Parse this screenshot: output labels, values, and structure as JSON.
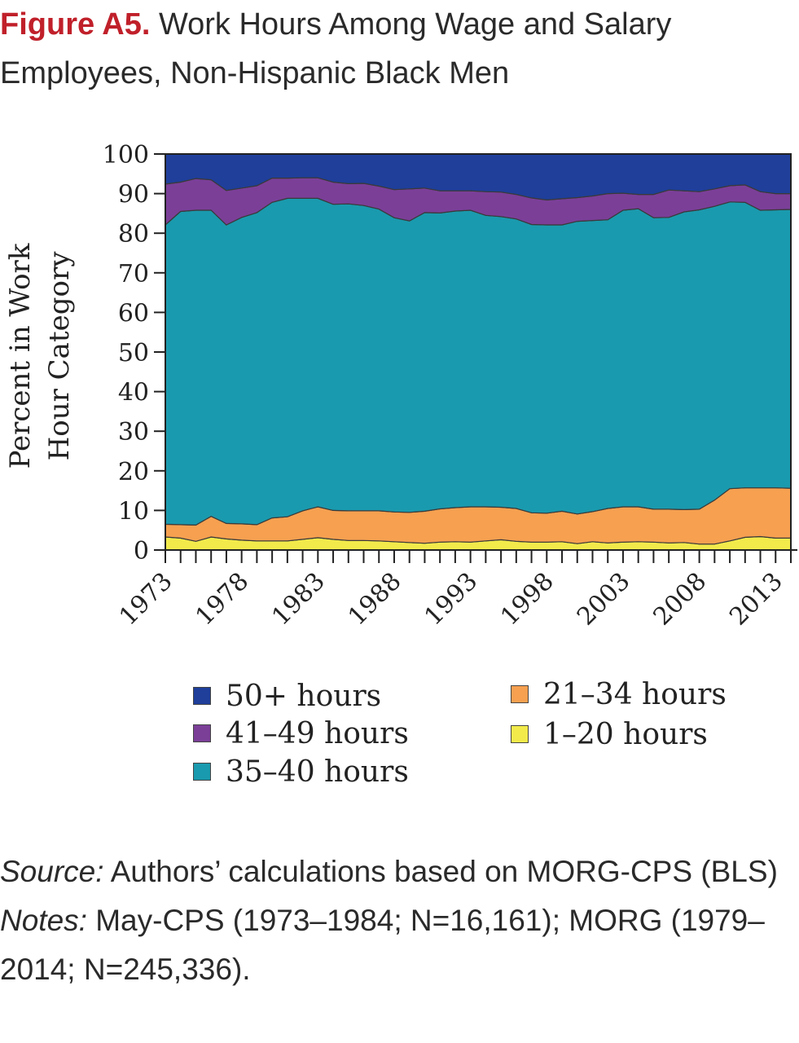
{
  "figure_label": "Figure A5.",
  "title": "Work Hours Among Wage and Salary Employees, Non-Hispanic Black Men",
  "source_label": "Source:",
  "source_text": " Authors’ calculations based on MORG-CPS (BLS)",
  "notes_label": "Notes:",
  "notes_text": " May-CPS (1973–1984; N=16,161); MORG (1979–2014; N=245,336).",
  "chart_data": {
    "type": "area",
    "stacked": true,
    "ylabel": "Percent in Work Hour Category",
    "xlabel": "",
    "ylim": [
      0,
      100
    ],
    "yticks": [
      0,
      10,
      20,
      30,
      40,
      50,
      60,
      70,
      80,
      90,
      100
    ],
    "xtick_labels": [
      "1973",
      "1978",
      "1983",
      "1988",
      "1993",
      "1998",
      "2003",
      "2008",
      "2013"
    ],
    "grid": false,
    "legend_position": "bottom",
    "x": [
      1973,
      1974,
      1975,
      1976,
      1977,
      1978,
      1979,
      1980,
      1981,
      1982,
      1983,
      1984,
      1985,
      1986,
      1987,
      1988,
      1989,
      1990,
      1991,
      1992,
      1993,
      1994,
      1995,
      1996,
      1997,
      1998,
      1999,
      2000,
      2001,
      2002,
      2003,
      2004,
      2005,
      2006,
      2007,
      2008,
      2009,
      2010,
      2011,
      2012,
      2013,
      2014
    ],
    "series": [
      {
        "name": "1–20 hours",
        "color": "#f2ea4b",
        "values": [
          3.3,
          3.0,
          2.2,
          3.3,
          2.8,
          2.5,
          2.3,
          2.3,
          2.3,
          2.7,
          3.1,
          2.7,
          2.4,
          2.4,
          2.3,
          2.1,
          1.9,
          1.7,
          2.0,
          2.1,
          2.0,
          2.3,
          2.6,
          2.2,
          2.0,
          2.0,
          2.1,
          1.6,
          2.1,
          1.8,
          2.0,
          2.1,
          2.0,
          1.8,
          1.9,
          1.5,
          1.5,
          2.3,
          3.2,
          3.4,
          3.0,
          3.0
        ]
      },
      {
        "name": "21–34 hours",
        "color": "#f6a050",
        "values": [
          3.2,
          3.4,
          4.1,
          5.2,
          3.9,
          4.1,
          4.1,
          5.8,
          6.1,
          7.2,
          7.8,
          7.3,
          7.5,
          7.5,
          7.6,
          7.5,
          7.6,
          8.1,
          8.4,
          8.6,
          8.9,
          8.6,
          8.2,
          8.3,
          7.4,
          7.3,
          7.7,
          7.5,
          7.6,
          8.7,
          8.9,
          8.8,
          8.3,
          8.5,
          8.3,
          8.8,
          11.1,
          13.2,
          12.5,
          12.3,
          12.7,
          12.6
        ]
      },
      {
        "name": "35–40 hours",
        "color": "#1a9aae",
        "values": [
          75.6,
          79.1,
          79.5,
          77.3,
          75.4,
          77.4,
          78.8,
          79.7,
          80.4,
          78.9,
          77.9,
          77.3,
          77.5,
          77.1,
          76.2,
          74.3,
          73.6,
          75.4,
          74.7,
          74.9,
          74.9,
          73.6,
          73.4,
          73.1,
          72.8,
          72.8,
          72.3,
          73.9,
          73.5,
          72.9,
          74.9,
          75.3,
          73.6,
          73.7,
          75.2,
          75.6,
          74.2,
          72.4,
          72.1,
          70.1,
          70.2,
          70.4
        ]
      },
      {
        "name": "41–49 hours",
        "color": "#7b3f98",
        "values": [
          10.3,
          7.4,
          8.0,
          7.7,
          8.7,
          7.4,
          6.8,
          6.1,
          5.1,
          5.2,
          5.2,
          5.6,
          5.1,
          5.6,
          5.8,
          7.1,
          8.1,
          6.2,
          5.6,
          5.1,
          4.9,
          6.0,
          6.2,
          6.2,
          6.7,
          6.3,
          6.6,
          6.0,
          6.2,
          6.6,
          4.3,
          3.6,
          5.9,
          6.9,
          5.3,
          4.6,
          4.4,
          4.1,
          4.4,
          4.7,
          4.1,
          4.0
        ]
      },
      {
        "name": "50+ hours",
        "color": "#1f3f9b",
        "values": [
          7.6,
          7.1,
          6.2,
          6.5,
          9.2,
          8.6,
          8.0,
          6.1,
          6.1,
          6.0,
          6.0,
          7.1,
          7.5,
          7.4,
          8.1,
          9.0,
          8.8,
          8.6,
          9.3,
          9.3,
          9.3,
          9.5,
          9.6,
          10.2,
          11.1,
          11.6,
          11.3,
          11.0,
          10.6,
          10.0,
          9.9,
          10.2,
          10.2,
          9.1,
          9.3,
          9.5,
          8.8,
          8.0,
          7.8,
          9.5,
          10.0,
          10.0
        ]
      }
    ]
  }
}
